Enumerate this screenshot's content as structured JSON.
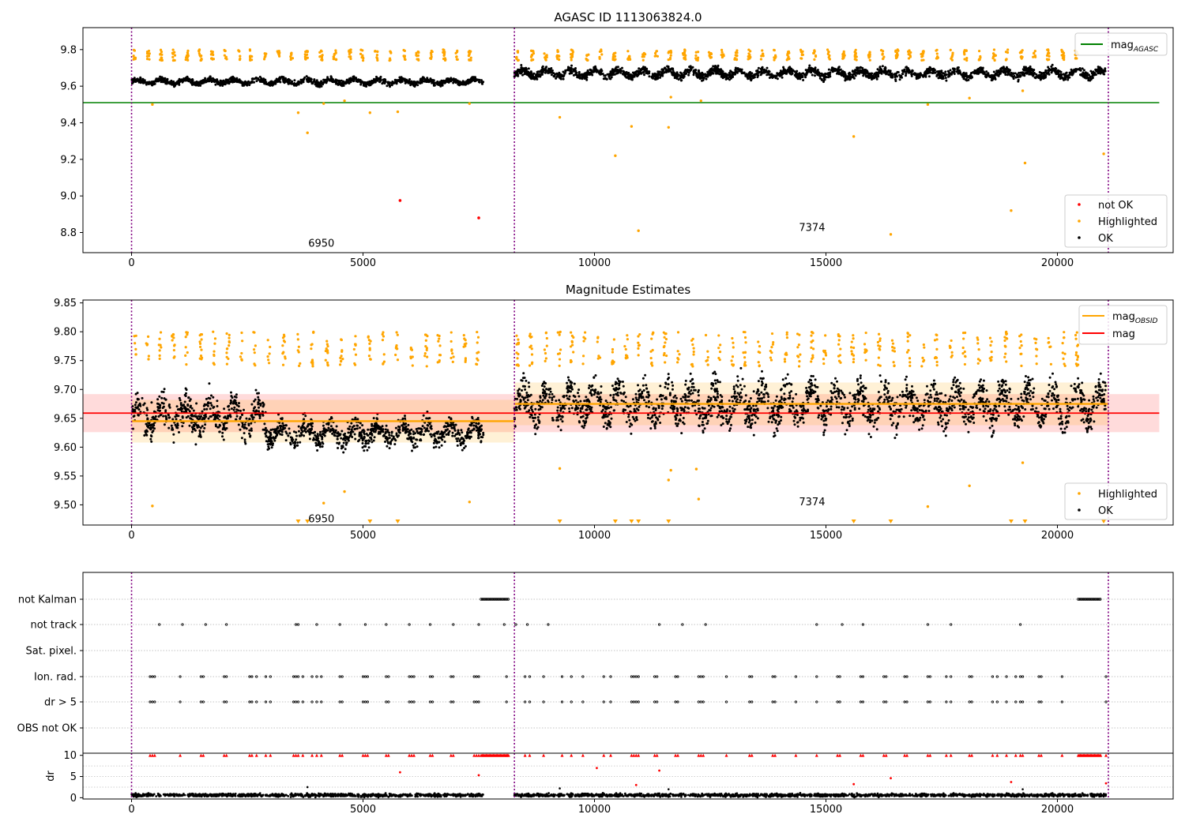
{
  "chart_data": [
    {
      "type": "scatter",
      "title": "AGASC ID 1113063824.0",
      "xlim": [
        -1050,
        22500
      ],
      "ylim": [
        8.69,
        9.92
      ],
      "xticks": [
        0,
        5000,
        10000,
        15000,
        20000
      ],
      "xtick_labels": [
        "0",
        "5000",
        "10000",
        "15000",
        "20000"
      ],
      "yticks": [
        8.8,
        9.0,
        9.2,
        9.4,
        9.6,
        9.8
      ],
      "ytick_labels": [
        "8.8",
        "9.0",
        "9.2",
        "9.4",
        "9.6",
        "9.8"
      ],
      "obsid_boundaries": [
        0,
        8270,
        21100
      ],
      "obsid_labels": [
        {
          "text": "6950",
          "x": 4100,
          "y": 8.74
        },
        {
          "text": "7374",
          "x": 14700,
          "y": 8.825
        }
      ],
      "hlines": [
        {
          "name": "mag_AGASC",
          "y": 9.51,
          "x0": -1050,
          "x1": 22200,
          "color": "#008000"
        }
      ],
      "segments": [
        {
          "x0": 0,
          "x1": 7600,
          "base": 9.625,
          "amp": 0.02
        },
        {
          "x0": 8270,
          "x1": 21050,
          "base": 9.67,
          "amp": 0.03
        }
      ],
      "highlighted_points": [
        {
          "x": 450,
          "y": 9.5
        },
        {
          "x": 3600,
          "y": 9.455
        },
        {
          "x": 3800,
          "y": 9.345
        },
        {
          "x": 4150,
          "y": 9.505
        },
        {
          "x": 4600,
          "y": 9.52
        },
        {
          "x": 5150,
          "y": 9.455
        },
        {
          "x": 5750,
          "y": 9.46
        },
        {
          "x": 7300,
          "y": 9.505
        },
        {
          "x": 9250,
          "y": 9.43
        },
        {
          "x": 10450,
          "y": 9.22
        },
        {
          "x": 10800,
          "y": 9.38
        },
        {
          "x": 10950,
          "y": 8.81
        },
        {
          "x": 11600,
          "y": 9.375
        },
        {
          "x": 11650,
          "y": 9.54
        },
        {
          "x": 12300,
          "y": 9.52
        },
        {
          "x": 15600,
          "y": 9.325
        },
        {
          "x": 16400,
          "y": 8.79
        },
        {
          "x": 17200,
          "y": 9.5
        },
        {
          "x": 18100,
          "y": 9.535
        },
        {
          "x": 19000,
          "y": 8.92
        },
        {
          "x": 19300,
          "y": 9.18
        },
        {
          "x": 19250,
          "y": 9.575
        },
        {
          "x": 21000,
          "y": 9.23
        }
      ],
      "not_ok_points": [
        {
          "x": 5800,
          "y": 8.975
        },
        {
          "x": 7500,
          "y": 8.88
        }
      ],
      "legend_lines": [
        {
          "label": "mag",
          "subscript": "AGASC",
          "color": "#008000"
        }
      ],
      "legend_markers": [
        {
          "label": "not OK",
          "color": "#ff0000"
        },
        {
          "label": "Highlighted",
          "color": "#ffa500"
        },
        {
          "label": "OK",
          "color": "#000000"
        }
      ]
    },
    {
      "type": "scatter",
      "title": "Magnitude Estimates",
      "xlim": [
        -1050,
        22500
      ],
      "ylim": [
        9.465,
        9.855
      ],
      "xticks": [
        0,
        5000,
        10000,
        15000,
        20000
      ],
      "xtick_labels": [
        "0",
        "5000",
        "10000",
        "15000",
        "20000"
      ],
      "yticks": [
        9.5,
        9.55,
        9.6,
        9.65,
        9.7,
        9.75,
        9.8,
        9.85
      ],
      "ytick_labels": [
        "9.50",
        "9.55",
        "9.60",
        "9.65",
        "9.70",
        "9.75",
        "9.80",
        "9.85"
      ],
      "obsid_boundaries": [
        0,
        8270,
        21100
      ],
      "obsid_labels": [
        {
          "text": "6950",
          "x": 4100,
          "y": 9.475
        },
        {
          "text": "7374",
          "x": 14700,
          "y": 9.505
        }
      ],
      "mag": {
        "y": 9.659,
        "band": [
          9.626,
          9.692
        ],
        "x0": -1050,
        "x1": 22200,
        "color": "#ff0000"
      },
      "mag_obsid": [
        {
          "x0": 0,
          "x1": 8270,
          "y": 9.645,
          "band": [
            9.608,
            9.682
          ]
        },
        {
          "x0": 8270,
          "x1": 21100,
          "y": 9.675,
          "band": [
            9.638,
            9.712
          ]
        }
      ],
      "segments": [
        {
          "x0": 0,
          "x1": 2900,
          "base": 9.655,
          "amp": 0.035
        },
        {
          "x0": 2900,
          "x1": 7600,
          "base": 9.625,
          "amp": 0.022
        },
        {
          "x0": 8270,
          "x1": 21050,
          "base": 9.675,
          "amp": 0.038
        }
      ],
      "highlighted_points": [
        {
          "x": 450,
          "y": 9.498
        },
        {
          "x": 4150,
          "y": 9.503
        },
        {
          "x": 4600,
          "y": 9.523
        },
        {
          "x": 7300,
          "y": 9.505
        },
        {
          "x": 9250,
          "y": 9.563
        },
        {
          "x": 11650,
          "y": 9.56
        },
        {
          "x": 11600,
          "y": 9.543
        },
        {
          "x": 12250,
          "y": 9.51
        },
        {
          "x": 12200,
          "y": 9.562
        },
        {
          "x": 17200,
          "y": 9.497
        },
        {
          "x": 18100,
          "y": 9.533
        },
        {
          "x": 19250,
          "y": 9.573
        }
      ],
      "offscale_markers": [
        3600,
        3800,
        5150,
        5750,
        9250,
        10450,
        10800,
        10950,
        11600,
        15600,
        16400,
        19000,
        19300,
        21000
      ],
      "legend_lines": [
        {
          "label": "mag",
          "subscript": "OBSID",
          "color": "#ffa500"
        },
        {
          "label": "mag",
          "subscript": "",
          "color": "#ff0000"
        }
      ],
      "legend_markers": [
        {
          "label": "Highlighted",
          "color": "#ffa500"
        },
        {
          "label": "OK",
          "color": "#000000"
        }
      ]
    },
    {
      "type": "scatter",
      "title": "",
      "xlim": [
        -1050,
        22500
      ],
      "flag_labels": [
        "not Kalman",
        "not track",
        "Sat. pixel.",
        "Ion. rad.",
        "dr > 5",
        "OBS not OK"
      ],
      "obsid_boundaries": [
        0,
        8270,
        21100
      ],
      "flag_ranges": {
        "not Kalman": [
          [
            7550,
            8150
          ],
          [
            20450,
            20950
          ]
        ]
      },
      "flag_points": {
        "not track": [
          600,
          1100,
          1600,
          2050,
          3550,
          3600,
          4000,
          4500,
          5050,
          5500,
          6000,
          6450,
          6950,
          7500,
          8050,
          8300,
          8550,
          9000,
          11400,
          11900,
          12400,
          14800,
          15350,
          15800,
          17200,
          17700,
          19200
        ],
        "Ion. rad.": [
          400,
          450,
          500,
          1050,
          1500,
          1550,
          2000,
          2050,
          2550,
          2600,
          2700,
          2900,
          3000,
          3500,
          3550,
          3600,
          3700,
          3900,
          4000,
          4100,
          4500,
          4550,
          5000,
          5050,
          5100,
          5500,
          5550,
          6000,
          6050,
          6100,
          6450,
          6500,
          6900,
          6950,
          7400,
          7450,
          7500,
          8100,
          8500,
          8600,
          8900,
          9300,
          9500,
          9750,
          10200,
          10350,
          10800,
          10850,
          10900,
          10950,
          11300,
          11350,
          11750,
          11800,
          12250,
          12300,
          12350,
          12850,
          13350,
          13400,
          13850,
          13900,
          14350,
          14800,
          15250,
          15300,
          15750,
          15800,
          16250,
          16300,
          16700,
          16750,
          17200,
          17250,
          17600,
          17700,
          18100,
          18150,
          18600,
          18700,
          18900,
          19100,
          19200,
          19250,
          19600,
          19650,
          20100,
          21050
        ],
        "dr > 5": [
          400,
          450,
          500,
          1050,
          1500,
          1550,
          2000,
          2050,
          2550,
          2600,
          2700,
          2900,
          3000,
          3500,
          3550,
          3600,
          3700,
          3900,
          4000,
          4100,
          4500,
          4550,
          5000,
          5050,
          5100,
          5500,
          5550,
          6000,
          6050,
          6100,
          6450,
          6500,
          6900,
          6950,
          7400,
          7450,
          7500,
          8100,
          8500,
          8600,
          8900,
          9300,
          9500,
          9750,
          10200,
          10350,
          10800,
          10850,
          10900,
          10950,
          11300,
          11350,
          11750,
          11800,
          12250,
          12300,
          12350,
          12850,
          13350,
          13400,
          13850,
          13900,
          14350,
          14800,
          15250,
          15300,
          15750,
          15800,
          16250,
          16300,
          16700,
          16750,
          17200,
          17250,
          17600,
          17700,
          18100,
          18150,
          18600,
          18700,
          18900,
          19100,
          19200,
          19250,
          19600,
          19650,
          20100,
          21050
        ]
      }
    },
    {
      "type": "scatter",
      "title": "",
      "ylabel": "dr",
      "xlim": [
        -1050,
        22500
      ],
      "ylim": [
        -0.3,
        10.5
      ],
      "xticks": [
        0,
        5000,
        10000,
        15000,
        20000
      ],
      "xtick_labels": [
        "0",
        "5000",
        "10000",
        "15000",
        "20000"
      ],
      "yticks": [
        0,
        5,
        10
      ],
      "ytick_labels": [
        "0",
        "5",
        "10"
      ],
      "obsid_boundaries": [
        0,
        8270,
        21100
      ],
      "segments": [
        {
          "x0": 0,
          "x1": 7600,
          "base": 0.6,
          "amp": 0.45
        },
        {
          "x0": 8270,
          "x1": 21050,
          "base": 0.6,
          "amp": 0.45
        }
      ],
      "capped_ranges": [
        [
          7550,
          8150
        ],
        [
          20450,
          20950
        ]
      ],
      "capped_points": [
        400,
        450,
        500,
        1050,
        1500,
        1550,
        2000,
        2050,
        2550,
        2600,
        2700,
        2900,
        3000,
        3500,
        3550,
        3600,
        3700,
        3900,
        4000,
        4100,
        4500,
        4550,
        5000,
        5050,
        5100,
        5500,
        5550,
        6000,
        6050,
        6100,
        6450,
        6500,
        6900,
        6950,
        7400,
        7450,
        7500,
        8100,
        8500,
        8600,
        8900,
        9300,
        9500,
        9750,
        10200,
        10350,
        10800,
        10850,
        10900,
        10950,
        11300,
        11350,
        11750,
        11800,
        12250,
        12300,
        12350,
        12850,
        13350,
        13400,
        13850,
        13900,
        14350,
        14800,
        15250,
        15300,
        15750,
        15800,
        16250,
        16300,
        16700,
        16750,
        17200,
        17250,
        17600,
        17700,
        18100,
        18150,
        18600,
        18700,
        18900,
        19100,
        19200,
        19250,
        19600,
        19650,
        20100,
        21050
      ],
      "red_points": [
        {
          "x": 5800,
          "y": 6.0
        },
        {
          "x": 7500,
          "y": 5.3
        },
        {
          "x": 10050,
          "y": 7.0
        },
        {
          "x": 10900,
          "y": 3.0
        },
        {
          "x": 11400,
          "y": 6.4
        },
        {
          "x": 15600,
          "y": 3.2
        },
        {
          "x": 16400,
          "y": 4.6
        },
        {
          "x": 19000,
          "y": 3.7
        },
        {
          "x": 21050,
          "y": 3.4
        }
      ],
      "black_outliers": [
        {
          "x": 3800,
          "y": 2.5
        },
        {
          "x": 9250,
          "y": 2.2
        },
        {
          "x": 11600,
          "y": 2.0
        },
        {
          "x": 19250,
          "y": 2.0
        }
      ]
    }
  ]
}
